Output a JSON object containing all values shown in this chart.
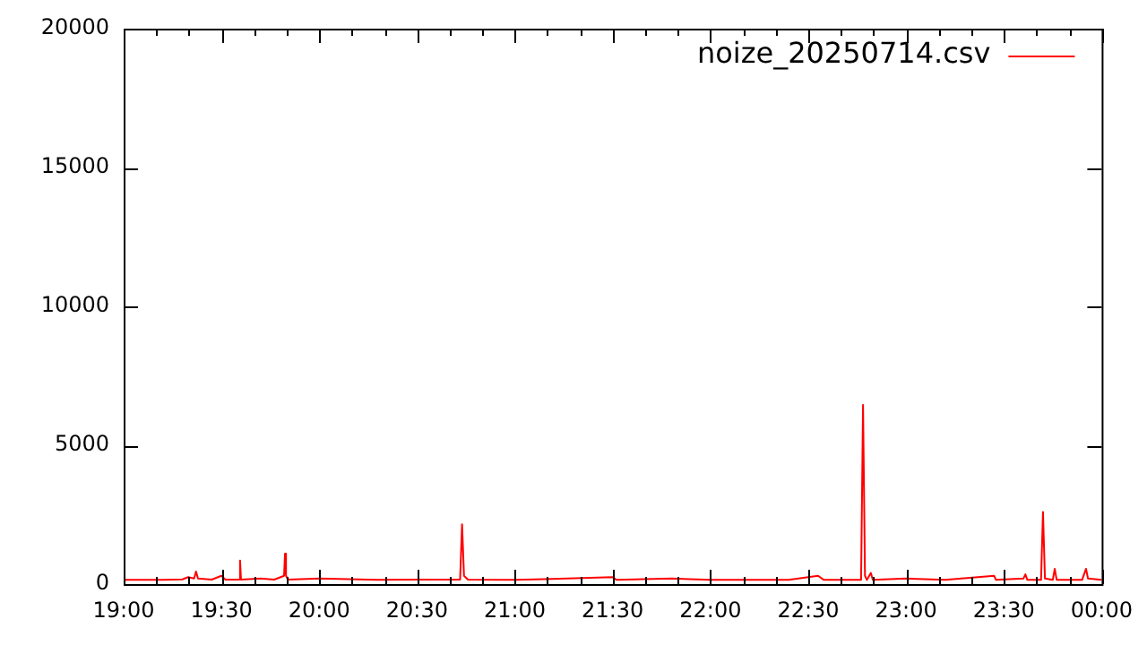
{
  "chart_data": {
    "type": "line",
    "x": [
      19.0,
      19.2,
      19.3,
      19.33,
      19.36,
      19.37,
      19.38,
      19.45,
      19.5,
      19.52,
      19.59,
      19.595,
      19.6,
      19.7,
      19.77,
      19.82,
      19.825,
      19.83,
      19.84,
      20.0,
      20.3,
      20.5,
      20.72,
      20.73,
      20.74,
      20.76,
      21.0,
      21.15,
      21.5,
      21.52,
      21.8,
      22.0,
      22.4,
      22.55,
      22.58,
      22.77,
      22.78,
      22.79,
      22.8,
      22.82,
      22.83,
      23.0,
      23.2,
      23.45,
      23.46,
      23.6,
      23.61,
      23.62,
      23.69,
      23.7,
      23.71,
      23.75,
      23.76,
      23.77,
      23.9,
      23.92,
      23.93,
      24.0
    ],
    "series": [
      {
        "name": "noize_20250714.csv",
        "color": "#ff0000",
        "values": [
          150,
          150,
          170,
          250,
          200,
          450,
          200,
          160,
          300,
          160,
          160,
          850,
          160,
          200,
          160,
          300,
          1100,
          300,
          160,
          200,
          150,
          160,
          160,
          2150,
          300,
          160,
          150,
          180,
          250,
          150,
          200,
          150,
          150,
          300,
          150,
          150,
          6450,
          300,
          150,
          400,
          150,
          200,
          150,
          300,
          150,
          200,
          350,
          150,
          150,
          2600,
          200,
          150,
          550,
          150,
          150,
          550,
          200,
          150
        ]
      }
    ],
    "xlim": [
      19,
      24
    ],
    "xticks": [
      {
        "value": 19,
        "label": "19:00"
      },
      {
        "value": 19.1667,
        "label": null
      },
      {
        "value": 19.3333,
        "label": null
      },
      {
        "value": 19.5,
        "label": "19:30"
      },
      {
        "value": 19.6667,
        "label": null
      },
      {
        "value": 19.8333,
        "label": null
      },
      {
        "value": 20,
        "label": "20:00"
      },
      {
        "value": 20.1667,
        "label": null
      },
      {
        "value": 20.3333,
        "label": null
      },
      {
        "value": 20.5,
        "label": "20:30"
      },
      {
        "value": 20.6667,
        "label": null
      },
      {
        "value": 20.8333,
        "label": null
      },
      {
        "value": 21,
        "label": "21:00"
      },
      {
        "value": 21.1667,
        "label": null
      },
      {
        "value": 21.3333,
        "label": null
      },
      {
        "value": 21.5,
        "label": "21:30"
      },
      {
        "value": 21.6667,
        "label": null
      },
      {
        "value": 21.8333,
        "label": null
      },
      {
        "value": 22,
        "label": "22:00"
      },
      {
        "value": 22.1667,
        "label": null
      },
      {
        "value": 22.3333,
        "label": null
      },
      {
        "value": 22.5,
        "label": "22:30"
      },
      {
        "value": 22.6667,
        "label": null
      },
      {
        "value": 22.8333,
        "label": null
      },
      {
        "value": 23,
        "label": "23:00"
      },
      {
        "value": 23.1667,
        "label": null
      },
      {
        "value": 23.3333,
        "label": null
      },
      {
        "value": 23.5,
        "label": "23:30"
      },
      {
        "value": 23.6667,
        "label": null
      },
      {
        "value": 23.8333,
        "label": null
      },
      {
        "value": 24,
        "label": "00:00"
      }
    ],
    "ylim": [
      0,
      20000
    ],
    "yticks": [
      0,
      5000,
      10000,
      15000,
      20000
    ],
    "grid": false,
    "legend": "top right",
    "marker": "none",
    "line_style": "solid"
  }
}
